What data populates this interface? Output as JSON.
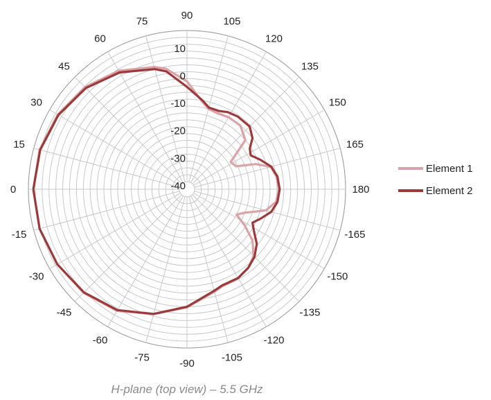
{
  "caption": "H-plane (top view) – 5.5 GHz",
  "chart_data": {
    "type": "polar-line",
    "title": "",
    "angle_ticks": [
      90,
      105,
      120,
      135,
      150,
      165,
      180,
      -165,
      -150,
      -135,
      -120,
      -105,
      -90,
      -75,
      -60,
      -45,
      -30,
      -15,
      0,
      15,
      30,
      45,
      60,
      75
    ],
    "radial_ticks": [
      -40,
      -30,
      -20,
      -10,
      0,
      10
    ],
    "radial_range": [
      -40,
      15
    ],
    "radial_grid_step": 2.5,
    "angular_grid_step": 15,
    "orientation": "0° at left, 90° at top, 180° at right, -90° at bottom",
    "grid": true,
    "legend_position": "right",
    "series": [
      {
        "name": "Element 1",
        "color": "#dba3a7",
        "points": [
          [
            0,
            13.2
          ],
          [
            -15,
            12.8
          ],
          [
            -30,
            11.8
          ],
          [
            -45,
            10.5
          ],
          [
            -60,
            8.3
          ],
          [
            -75,
            4.3
          ],
          [
            -90,
            0.2
          ],
          [
            -105,
            -4.2
          ],
          [
            -110,
            -5.2
          ],
          [
            -120,
            -5.5
          ],
          [
            -128,
            -6.5
          ],
          [
            -135,
            -8.5
          ],
          [
            -142,
            -12.5
          ],
          [
            -148,
            -18.0
          ],
          [
            -153,
            -22.5
          ],
          [
            -158,
            -20.0
          ],
          [
            -165,
            -13.0
          ],
          [
            -172,
            -10.0
          ],
          [
            180,
            -9.3
          ],
          [
            172,
            -9.8
          ],
          [
            165,
            -11.2
          ],
          [
            160,
            -16.0
          ],
          [
            155,
            -23.0
          ],
          [
            148,
            -24.0
          ],
          [
            140,
            -15.0
          ],
          [
            130,
            -12.5
          ],
          [
            120,
            -12.5
          ],
          [
            112,
            -13.0
          ],
          [
            105,
            -12.5
          ],
          [
            100,
            -10.5
          ],
          [
            90,
            -3.5
          ],
          [
            80,
            1.8
          ],
          [
            75,
            3.3
          ],
          [
            60,
            7.0
          ],
          [
            45,
            9.8
          ],
          [
            30,
            11.6
          ],
          [
            15,
            12.8
          ],
          [
            0,
            13.2
          ]
        ]
      },
      {
        "name": "Element 2",
        "color": "#9b3a3a",
        "points": [
          [
            0,
            13.2
          ],
          [
            -15,
            12.8
          ],
          [
            -30,
            11.8
          ],
          [
            -45,
            10.3
          ],
          [
            -60,
            8.0
          ],
          [
            -75,
            4.2
          ],
          [
            -90,
            0.0
          ],
          [
            -105,
            -4.5
          ],
          [
            -110,
            -5.5
          ],
          [
            -120,
            -5.5
          ],
          [
            -128,
            -6.5
          ],
          [
            -135,
            -8.0
          ],
          [
            -142,
            -10.5
          ],
          [
            -148,
            -14.0
          ],
          [
            -153,
            -16.0
          ],
          [
            -158,
            -14.0
          ],
          [
            -165,
            -11.0
          ],
          [
            -172,
            -9.5
          ],
          [
            180,
            -9.0
          ],
          [
            172,
            -9.5
          ],
          [
            165,
            -11.0
          ],
          [
            158,
            -14.0
          ],
          [
            152,
            -16.5
          ],
          [
            147,
            -15.5
          ],
          [
            142,
            -12.5
          ],
          [
            135,
            -10.5
          ],
          [
            125,
            -10.5
          ],
          [
            118,
            -11.0
          ],
          [
            112,
            -12.0
          ],
          [
            105,
            -12.0
          ],
          [
            100,
            -10.0
          ],
          [
            90,
            -5.5
          ],
          [
            80,
            0.8
          ],
          [
            75,
            2.5
          ],
          [
            60,
            6.3
          ],
          [
            45,
            9.3
          ],
          [
            30,
            11.3
          ],
          [
            15,
            12.6
          ],
          [
            0,
            13.2
          ]
        ]
      }
    ]
  }
}
